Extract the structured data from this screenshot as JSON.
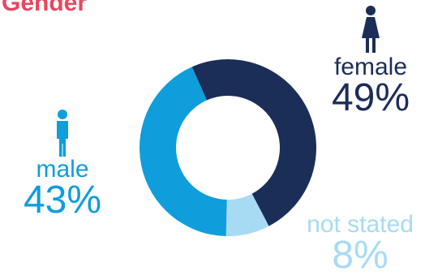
{
  "title": "Gender",
  "chart_data": {
    "type": "donut",
    "title": "Gender",
    "categories": [
      "female",
      "not stated",
      "male"
    ],
    "values": [
      49,
      8,
      43
    ],
    "unit": "%",
    "colors": [
      "#1b2e57",
      "#a7dbf4",
      "#0f9ddc"
    ],
    "icons": {
      "female": "woman-icon",
      "male": "man-icon"
    },
    "labels": {
      "female": {
        "name": "female",
        "value": "49%"
      },
      "male": {
        "name": "male",
        "value": "43%"
      },
      "not_stated": {
        "name": "not stated",
        "value": "8%"
      }
    }
  }
}
